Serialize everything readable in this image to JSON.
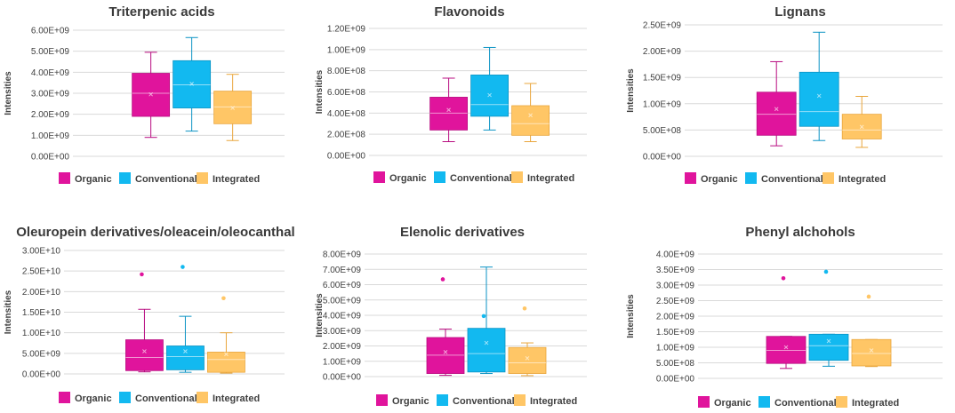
{
  "colors": {
    "organic": "#e0149c",
    "conventional": "#12b9f0",
    "integrated": "#ffc666",
    "organic_line": "#b80c80",
    "conventional_line": "#0b93c4",
    "integrated_line": "#e9a63c",
    "grid": "#d9d9d9"
  },
  "legend": [
    "Organic",
    "Conventional",
    "Integrated"
  ],
  "chart_data": [
    {
      "type": "box",
      "title": "Triterpenic acids",
      "ylabel": "Intensities",
      "ylim": [
        0,
        6000000000
      ],
      "ticks": [
        "0.00E+00",
        "1.00E+09",
        "2.00E+09",
        "3.00E+09",
        "4.00E+09",
        "5.00E+09",
        "6.00E+09"
      ],
      "series": [
        {
          "name": "Organic",
          "min": 900000000,
          "q1": 1900000000,
          "median": 3000000000,
          "mean": 2950000000,
          "q3": 3950000000,
          "max": 4950000000,
          "outliers": []
        },
        {
          "name": "Conventional",
          "min": 1200000000,
          "q1": 2300000000,
          "median": 3400000000,
          "mean": 3450000000,
          "q3": 4550000000,
          "max": 5650000000,
          "outliers": []
        },
        {
          "name": "Integrated",
          "min": 750000000,
          "q1": 1550000000,
          "median": 2350000000,
          "mean": 2300000000,
          "q3": 3100000000,
          "max": 3900000000,
          "outliers": []
        }
      ]
    },
    {
      "type": "box",
      "title": "Flavonoids",
      "ylabel": "Intensities",
      "ylim": [
        0,
        1200000000
      ],
      "ticks": [
        "0.00E+00",
        "2.00E+08",
        "4.00E+08",
        "6.00E+08",
        "8.00E+08",
        "1.00E+09",
        "1.20E+09"
      ],
      "series": [
        {
          "name": "Organic",
          "min": 130000000,
          "q1": 240000000,
          "median": 400000000,
          "mean": 430000000,
          "q3": 550000000,
          "max": 730000000,
          "outliers": []
        },
        {
          "name": "Conventional",
          "min": 240000000,
          "q1": 370000000,
          "median": 480000000,
          "mean": 570000000,
          "q3": 760000000,
          "max": 1020000000,
          "outliers": []
        },
        {
          "name": "Integrated",
          "min": 130000000,
          "q1": 190000000,
          "median": 300000000,
          "mean": 380000000,
          "q3": 470000000,
          "max": 680000000,
          "outliers": []
        }
      ]
    },
    {
      "type": "box",
      "title": "Lignans",
      "ylabel": "Intensities",
      "ylim": [
        0,
        2500000000
      ],
      "ticks": [
        "0.00E+00",
        "5.00E+08",
        "1.00E+09",
        "1.50E+09",
        "2.00E+09",
        "2.50E+09"
      ],
      "series": [
        {
          "name": "Organic",
          "min": 200000000,
          "q1": 400000000,
          "median": 800000000,
          "mean": 900000000,
          "q3": 1220000000,
          "max": 1800000000,
          "outliers": []
        },
        {
          "name": "Conventional",
          "min": 300000000,
          "q1": 570000000,
          "median": 850000000,
          "mean": 1150000000,
          "q3": 1600000000,
          "max": 2360000000,
          "outliers": []
        },
        {
          "name": "Integrated",
          "min": 170000000,
          "q1": 330000000,
          "median": 500000000,
          "mean": 560000000,
          "q3": 800000000,
          "max": 1140000000,
          "outliers": []
        }
      ]
    },
    {
      "type": "box",
      "title": "Oleuropein derivatives/oleacein/oleocanthal",
      "ylabel": "Intensities",
      "ylim": [
        0,
        30000000000
      ],
      "ticks": [
        "0.00E+00",
        "5.00E+09",
        "1.00E+10",
        "1.50E+10",
        "2.00E+10",
        "2.50E+10",
        "3.00E+10"
      ],
      "series": [
        {
          "name": "Organic",
          "min": 500000000,
          "q1": 800000000,
          "median": 4000000000,
          "mean": 5500000000,
          "q3": 8300000000,
          "max": 15700000000,
          "outliers": [
            24200000000
          ]
        },
        {
          "name": "Conventional",
          "min": 400000000,
          "q1": 1000000000,
          "median": 4200000000,
          "mean": 5500000000,
          "q3": 6800000000,
          "max": 14000000000,
          "outliers": [
            26000000000
          ]
        },
        {
          "name": "Integrated",
          "min": 200000000,
          "q1": 400000000,
          "median": 3500000000,
          "mean": 4800000000,
          "q3": 5300000000,
          "max": 10000000000,
          "outliers": [
            18400000000
          ]
        }
      ]
    },
    {
      "type": "box",
      "title": "Elenolic derivatives",
      "ylabel": "Intensities",
      "ylim": [
        0,
        8000000000
      ],
      "ticks": [
        "0.00E+00",
        "1.00E+09",
        "2.00E+09",
        "3.00E+09",
        "4.00E+09",
        "5.00E+09",
        "6.00E+09",
        "7.00E+09",
        "8.00E+09"
      ],
      "series": [
        {
          "name": "Organic",
          "min": 80000000,
          "q1": 200000000,
          "median": 1400000000,
          "mean": 1600000000,
          "q3": 2550000000,
          "max": 3100000000,
          "outliers": [
            6350000000
          ]
        },
        {
          "name": "Conventional",
          "min": 200000000,
          "q1": 300000000,
          "median": 1500000000,
          "mean": 2200000000,
          "q3": 3150000000,
          "max": 7150000000,
          "outliers": [
            3950000000
          ]
        },
        {
          "name": "Integrated",
          "min": 60000000,
          "q1": 200000000,
          "median": 900000000,
          "mean": 1200000000,
          "q3": 1900000000,
          "max": 2200000000,
          "outliers": [
            4450000000
          ]
        }
      ]
    },
    {
      "type": "box",
      "title": "Phenyl alchohols",
      "ylabel": "Intensities",
      "ylim": [
        0,
        4000000000
      ],
      "ticks": [
        "0.00E+00",
        "5.00E+08",
        "1.00E+09",
        "1.50E+09",
        "2.00E+09",
        "2.50E+09",
        "3.00E+09",
        "3.50E+09",
        "4.00E+09"
      ],
      "series": [
        {
          "name": "Organic",
          "min": 320000000,
          "q1": 480000000,
          "median": 900000000,
          "mean": 1000000000,
          "q3": 1350000000,
          "max": 1350000000,
          "outliers": [
            3220000000
          ]
        },
        {
          "name": "Conventional",
          "min": 390000000,
          "q1": 580000000,
          "median": 1050000000,
          "mean": 1200000000,
          "q3": 1420000000,
          "max": 1420000000,
          "outliers": [
            3430000000
          ]
        },
        {
          "name": "Integrated",
          "min": 380000000,
          "q1": 400000000,
          "median": 800000000,
          "mean": 900000000,
          "q3": 1250000000,
          "max": 1250000000,
          "outliers": [
            2630000000
          ]
        }
      ]
    }
  ]
}
